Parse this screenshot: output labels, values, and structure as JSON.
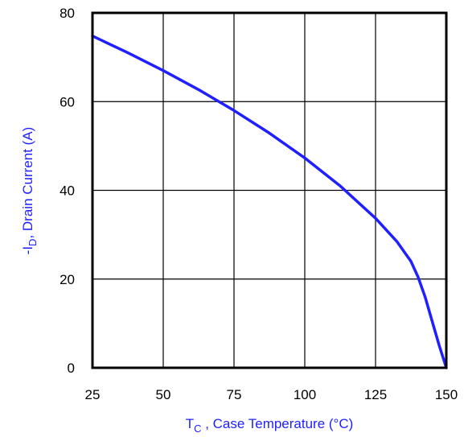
{
  "chart_data": {
    "type": "line",
    "title": "",
    "xlabel": {
      "main": "T",
      "sub": "C",
      "rest": " , Case Temperature (°C)"
    },
    "ylabel": {
      "prefix": "-I",
      "sub": "D",
      "rest": ",  Drain Current (A)"
    },
    "xlim": [
      25,
      150
    ],
    "ylim": [
      0,
      80
    ],
    "xticks": [
      25,
      50,
      75,
      100,
      125,
      150
    ],
    "yticks": [
      0,
      20,
      40,
      60,
      80
    ],
    "grid": true,
    "series": [
      {
        "color": "#1f1fff",
        "x": [
          25,
          37.5,
          50,
          62.5,
          75,
          87.5,
          100,
          112.5,
          125,
          132.5,
          137.5,
          140,
          142.5,
          145,
          147.5,
          150
        ],
        "y": [
          74.8,
          71,
          67,
          62.7,
          58,
          52.9,
          47.3,
          41,
          33.7,
          28.5,
          24,
          20.5,
          16,
          10.5,
          5,
          0
        ]
      }
    ]
  }
}
